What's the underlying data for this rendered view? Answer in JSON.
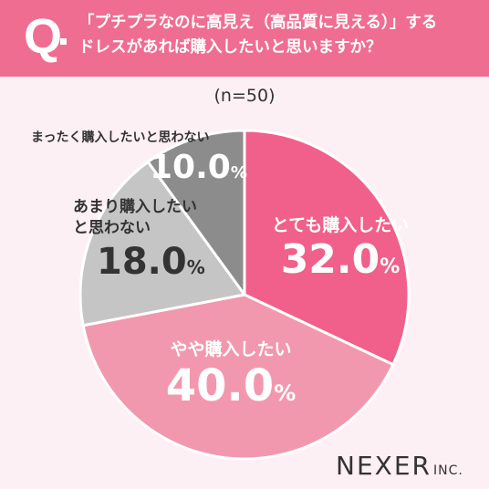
{
  "header": {
    "q_label": "Q",
    "question_lines": [
      "「プチプラなのに高見え（高品質に見える）」する",
      "ドレスがあれば購入したいと思いますか？"
    ]
  },
  "sample_label": "(n=50)",
  "colors": {
    "header": "#f06d92",
    "background": "#fdf0f4"
  },
  "chart_data": {
    "type": "pie",
    "series": [
      {
        "name": "とても購入したい",
        "value": 32.0,
        "display": "32.0",
        "unit": "%",
        "color": "#f0608a"
      },
      {
        "name": "やや購入したい",
        "value": 40.0,
        "display": "40.0",
        "unit": "%",
        "color": "#f298ae"
      },
      {
        "name": "あまり購入したいと思わない",
        "value": 18.0,
        "display": "18.0",
        "unit": "%",
        "color": "#c5c5c5"
      },
      {
        "name": "まったく購入したいと思わない",
        "value": 10.0,
        "display": "10.0",
        "unit": "%",
        "color": "#8c8c8c"
      }
    ],
    "label_lines": [
      [
        "とても購入したい"
      ],
      [
        "やや購入したい"
      ],
      [
        "あまり購入したい",
        "と思わない"
      ],
      [
        "まったく購入したいと思わない"
      ]
    ]
  },
  "brand": {
    "name": "NEXER",
    "suffix": "INC."
  }
}
